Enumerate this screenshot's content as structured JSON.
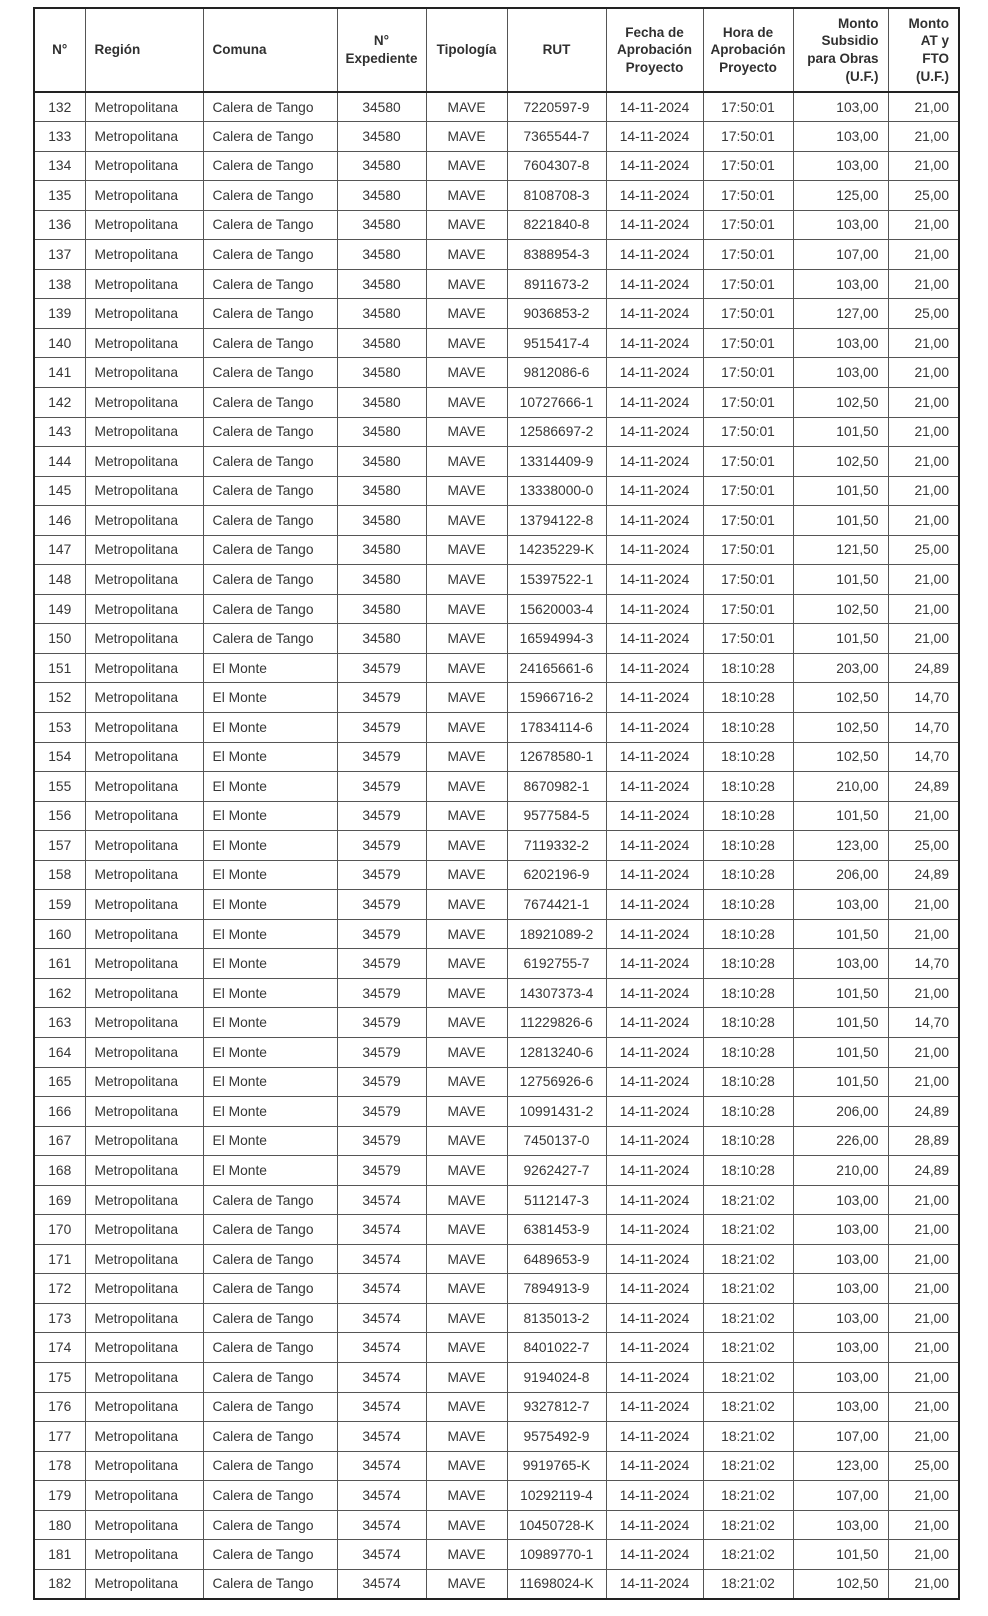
{
  "document": {
    "type": "subsidy-approval-table",
    "row_range_visible": {
      "first": 132,
      "last": 182
    }
  },
  "colors": {
    "background": "#ffffff",
    "text": "#363636",
    "inner_border": "#555555",
    "outer_border": "#222222"
  },
  "table": {
    "columns": [
      {
        "key": "n",
        "label": "N°"
      },
      {
        "key": "region",
        "label": "Región"
      },
      {
        "key": "comuna",
        "label": "Comuna"
      },
      {
        "key": "expediente",
        "label": "N°\nExpediente"
      },
      {
        "key": "tipologia",
        "label": "Tipología"
      },
      {
        "key": "rut",
        "label": "RUT"
      },
      {
        "key": "fecha",
        "label": "Fecha de\nAprobación\nProyecto"
      },
      {
        "key": "hora",
        "label": "Hora de\nAprobación\nProyecto"
      },
      {
        "key": "monto_subsidio",
        "label": "Monto\nSubsidio\npara Obras\n(U.F.)"
      },
      {
        "key": "monto_at",
        "label": "Monto\nAT y FTO\n(U.F.)"
      }
    ],
    "rows": [
      [
        "132",
        "Metropolitana",
        "Calera de Tango",
        "34580",
        "MAVE",
        "7220597-9",
        "14-11-2024",
        "17:50:01",
        "103,00",
        "21,00"
      ],
      [
        "133",
        "Metropolitana",
        "Calera de Tango",
        "34580",
        "MAVE",
        "7365544-7",
        "14-11-2024",
        "17:50:01",
        "103,00",
        "21,00"
      ],
      [
        "134",
        "Metropolitana",
        "Calera de Tango",
        "34580",
        "MAVE",
        "7604307-8",
        "14-11-2024",
        "17:50:01",
        "103,00",
        "21,00"
      ],
      [
        "135",
        "Metropolitana",
        "Calera de Tango",
        "34580",
        "MAVE",
        "8108708-3",
        "14-11-2024",
        "17:50:01",
        "125,00",
        "25,00"
      ],
      [
        "136",
        "Metropolitana",
        "Calera de Tango",
        "34580",
        "MAVE",
        "8221840-8",
        "14-11-2024",
        "17:50:01",
        "103,00",
        "21,00"
      ],
      [
        "137",
        "Metropolitana",
        "Calera de Tango",
        "34580",
        "MAVE",
        "8388954-3",
        "14-11-2024",
        "17:50:01",
        "107,00",
        "21,00"
      ],
      [
        "138",
        "Metropolitana",
        "Calera de Tango",
        "34580",
        "MAVE",
        "8911673-2",
        "14-11-2024",
        "17:50:01",
        "103,00",
        "21,00"
      ],
      [
        "139",
        "Metropolitana",
        "Calera de Tango",
        "34580",
        "MAVE",
        "9036853-2",
        "14-11-2024",
        "17:50:01",
        "127,00",
        "25,00"
      ],
      [
        "140",
        "Metropolitana",
        "Calera de Tango",
        "34580",
        "MAVE",
        "9515417-4",
        "14-11-2024",
        "17:50:01",
        "103,00",
        "21,00"
      ],
      [
        "141",
        "Metropolitana",
        "Calera de Tango",
        "34580",
        "MAVE",
        "9812086-6",
        "14-11-2024",
        "17:50:01",
        "103,00",
        "21,00"
      ],
      [
        "142",
        "Metropolitana",
        "Calera de Tango",
        "34580",
        "MAVE",
        "10727666-1",
        "14-11-2024",
        "17:50:01",
        "102,50",
        "21,00"
      ],
      [
        "143",
        "Metropolitana",
        "Calera de Tango",
        "34580",
        "MAVE",
        "12586697-2",
        "14-11-2024",
        "17:50:01",
        "101,50",
        "21,00"
      ],
      [
        "144",
        "Metropolitana",
        "Calera de Tango",
        "34580",
        "MAVE",
        "13314409-9",
        "14-11-2024",
        "17:50:01",
        "102,50",
        "21,00"
      ],
      [
        "145",
        "Metropolitana",
        "Calera de Tango",
        "34580",
        "MAVE",
        "13338000-0",
        "14-11-2024",
        "17:50:01",
        "101,50",
        "21,00"
      ],
      [
        "146",
        "Metropolitana",
        "Calera de Tango",
        "34580",
        "MAVE",
        "13794122-8",
        "14-11-2024",
        "17:50:01",
        "101,50",
        "21,00"
      ],
      [
        "147",
        "Metropolitana",
        "Calera de Tango",
        "34580",
        "MAVE",
        "14235229-K",
        "14-11-2024",
        "17:50:01",
        "121,50",
        "25,00"
      ],
      [
        "148",
        "Metropolitana",
        "Calera de Tango",
        "34580",
        "MAVE",
        "15397522-1",
        "14-11-2024",
        "17:50:01",
        "101,50",
        "21,00"
      ],
      [
        "149",
        "Metropolitana",
        "Calera de Tango",
        "34580",
        "MAVE",
        "15620003-4",
        "14-11-2024",
        "17:50:01",
        "102,50",
        "21,00"
      ],
      [
        "150",
        "Metropolitana",
        "Calera de Tango",
        "34580",
        "MAVE",
        "16594994-3",
        "14-11-2024",
        "17:50:01",
        "101,50",
        "21,00"
      ],
      [
        "151",
        "Metropolitana",
        "El Monte",
        "34579",
        "MAVE",
        "24165661-6",
        "14-11-2024",
        "18:10:28",
        "203,00",
        "24,89"
      ],
      [
        "152",
        "Metropolitana",
        "El Monte",
        "34579",
        "MAVE",
        "15966716-2",
        "14-11-2024",
        "18:10:28",
        "102,50",
        "14,70"
      ],
      [
        "153",
        "Metropolitana",
        "El Monte",
        "34579",
        "MAVE",
        "17834114-6",
        "14-11-2024",
        "18:10:28",
        "102,50",
        "14,70"
      ],
      [
        "154",
        "Metropolitana",
        "El Monte",
        "34579",
        "MAVE",
        "12678580-1",
        "14-11-2024",
        "18:10:28",
        "102,50",
        "14,70"
      ],
      [
        "155",
        "Metropolitana",
        "El Monte",
        "34579",
        "MAVE",
        "8670982-1",
        "14-11-2024",
        "18:10:28",
        "210,00",
        "24,89"
      ],
      [
        "156",
        "Metropolitana",
        "El Monte",
        "34579",
        "MAVE",
        "9577584-5",
        "14-11-2024",
        "18:10:28",
        "101,50",
        "21,00"
      ],
      [
        "157",
        "Metropolitana",
        "El Monte",
        "34579",
        "MAVE",
        "7119332-2",
        "14-11-2024",
        "18:10:28",
        "123,00",
        "25,00"
      ],
      [
        "158",
        "Metropolitana",
        "El Monte",
        "34579",
        "MAVE",
        "6202196-9",
        "14-11-2024",
        "18:10:28",
        "206,00",
        "24,89"
      ],
      [
        "159",
        "Metropolitana",
        "El Monte",
        "34579",
        "MAVE",
        "7674421-1",
        "14-11-2024",
        "18:10:28",
        "103,00",
        "21,00"
      ],
      [
        "160",
        "Metropolitana",
        "El Monte",
        "34579",
        "MAVE",
        "18921089-2",
        "14-11-2024",
        "18:10:28",
        "101,50",
        "21,00"
      ],
      [
        "161",
        "Metropolitana",
        "El Monte",
        "34579",
        "MAVE",
        "6192755-7",
        "14-11-2024",
        "18:10:28",
        "103,00",
        "14,70"
      ],
      [
        "162",
        "Metropolitana",
        "El Monte",
        "34579",
        "MAVE",
        "14307373-4",
        "14-11-2024",
        "18:10:28",
        "101,50",
        "21,00"
      ],
      [
        "163",
        "Metropolitana",
        "El Monte",
        "34579",
        "MAVE",
        "11229826-6",
        "14-11-2024",
        "18:10:28",
        "101,50",
        "14,70"
      ],
      [
        "164",
        "Metropolitana",
        "El Monte",
        "34579",
        "MAVE",
        "12813240-6",
        "14-11-2024",
        "18:10:28",
        "101,50",
        "21,00"
      ],
      [
        "165",
        "Metropolitana",
        "El Monte",
        "34579",
        "MAVE",
        "12756926-6",
        "14-11-2024",
        "18:10:28",
        "101,50",
        "21,00"
      ],
      [
        "166",
        "Metropolitana",
        "El Monte",
        "34579",
        "MAVE",
        "10991431-2",
        "14-11-2024",
        "18:10:28",
        "206,00",
        "24,89"
      ],
      [
        "167",
        "Metropolitana",
        "El Monte",
        "34579",
        "MAVE",
        "7450137-0",
        "14-11-2024",
        "18:10:28",
        "226,00",
        "28,89"
      ],
      [
        "168",
        "Metropolitana",
        "El Monte",
        "34579",
        "MAVE",
        "9262427-7",
        "14-11-2024",
        "18:10:28",
        "210,00",
        "24,89"
      ],
      [
        "169",
        "Metropolitana",
        "Calera de Tango",
        "34574",
        "MAVE",
        "5112147-3",
        "14-11-2024",
        "18:21:02",
        "103,00",
        "21,00"
      ],
      [
        "170",
        "Metropolitana",
        "Calera de Tango",
        "34574",
        "MAVE",
        "6381453-9",
        "14-11-2024",
        "18:21:02",
        "103,00",
        "21,00"
      ],
      [
        "171",
        "Metropolitana",
        "Calera de Tango",
        "34574",
        "MAVE",
        "6489653-9",
        "14-11-2024",
        "18:21:02",
        "103,00",
        "21,00"
      ],
      [
        "172",
        "Metropolitana",
        "Calera de Tango",
        "34574",
        "MAVE",
        "7894913-9",
        "14-11-2024",
        "18:21:02",
        "103,00",
        "21,00"
      ],
      [
        "173",
        "Metropolitana",
        "Calera de Tango",
        "34574",
        "MAVE",
        "8135013-2",
        "14-11-2024",
        "18:21:02",
        "103,00",
        "21,00"
      ],
      [
        "174",
        "Metropolitana",
        "Calera de Tango",
        "34574",
        "MAVE",
        "8401022-7",
        "14-11-2024",
        "18:21:02",
        "103,00",
        "21,00"
      ],
      [
        "175",
        "Metropolitana",
        "Calera de Tango",
        "34574",
        "MAVE",
        "9194024-8",
        "14-11-2024",
        "18:21:02",
        "103,00",
        "21,00"
      ],
      [
        "176",
        "Metropolitana",
        "Calera de Tango",
        "34574",
        "MAVE",
        "9327812-7",
        "14-11-2024",
        "18:21:02",
        "103,00",
        "21,00"
      ],
      [
        "177",
        "Metropolitana",
        "Calera de Tango",
        "34574",
        "MAVE",
        "9575492-9",
        "14-11-2024",
        "18:21:02",
        "107,00",
        "21,00"
      ],
      [
        "178",
        "Metropolitana",
        "Calera de Tango",
        "34574",
        "MAVE",
        "9919765-K",
        "14-11-2024",
        "18:21:02",
        "123,00",
        "25,00"
      ],
      [
        "179",
        "Metropolitana",
        "Calera de Tango",
        "34574",
        "MAVE",
        "10292119-4",
        "14-11-2024",
        "18:21:02",
        "107,00",
        "21,00"
      ],
      [
        "180",
        "Metropolitana",
        "Calera de Tango",
        "34574",
        "MAVE",
        "10450728-K",
        "14-11-2024",
        "18:21:02",
        "103,00",
        "21,00"
      ],
      [
        "181",
        "Metropolitana",
        "Calera de Tango",
        "34574",
        "MAVE",
        "10989770-1",
        "14-11-2024",
        "18:21:02",
        "101,50",
        "21,00"
      ],
      [
        "182",
        "Metropolitana",
        "Calera de Tango",
        "34574",
        "MAVE",
        "11698024-K",
        "14-11-2024",
        "18:21:02",
        "102,50",
        "21,00"
      ]
    ]
  }
}
